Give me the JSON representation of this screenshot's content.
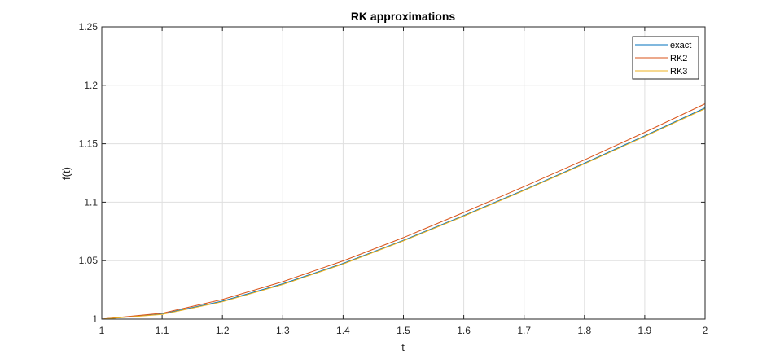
{
  "chart_data": {
    "type": "line",
    "title": "RK approximations",
    "xlabel": "t",
    "ylabel": "f(t)",
    "xlim": [
      1,
      2
    ],
    "ylim": [
      1,
      1.25
    ],
    "xticks": [
      1,
      1.1,
      1.2,
      1.3,
      1.4,
      1.5,
      1.6,
      1.7,
      1.8,
      1.9,
      2
    ],
    "xtick_labels": [
      "1",
      "1.1",
      "1.2",
      "1.3",
      "1.4",
      "1.5",
      "1.6",
      "1.7",
      "1.8",
      "1.9",
      "2"
    ],
    "yticks": [
      1,
      1.05,
      1.1,
      1.15,
      1.2,
      1.25
    ],
    "ytick_labels": [
      "1",
      "1.05",
      "1.1",
      "1.15",
      "1.2",
      "1.25"
    ],
    "grid": true,
    "legend_position": "top-right",
    "x": [
      1,
      1.1,
      1.2,
      1.3,
      1.4,
      1.5,
      1.6,
      1.7,
      1.8,
      1.9,
      2
    ],
    "series": [
      {
        "name": "exact",
        "color": "#0072bd",
        "values": [
          1,
          1.0044,
          1.0154,
          1.0302,
          1.0476,
          1.0674,
          1.0886,
          1.1105,
          1.1334,
          1.1568,
          1.1807
        ]
      },
      {
        "name": "RK2",
        "color": "#d95319",
        "values": [
          1,
          1.005,
          1.0168,
          1.032,
          1.0498,
          1.0697,
          1.0912,
          1.1134,
          1.1362,
          1.1598,
          1.1842
        ]
      },
      {
        "name": "RK3",
        "color": "#edb120",
        "values": [
          1,
          1.004,
          1.0148,
          1.0296,
          1.0471,
          1.0669,
          1.088,
          1.11,
          1.1328,
          1.1562,
          1.18
        ]
      }
    ]
  }
}
